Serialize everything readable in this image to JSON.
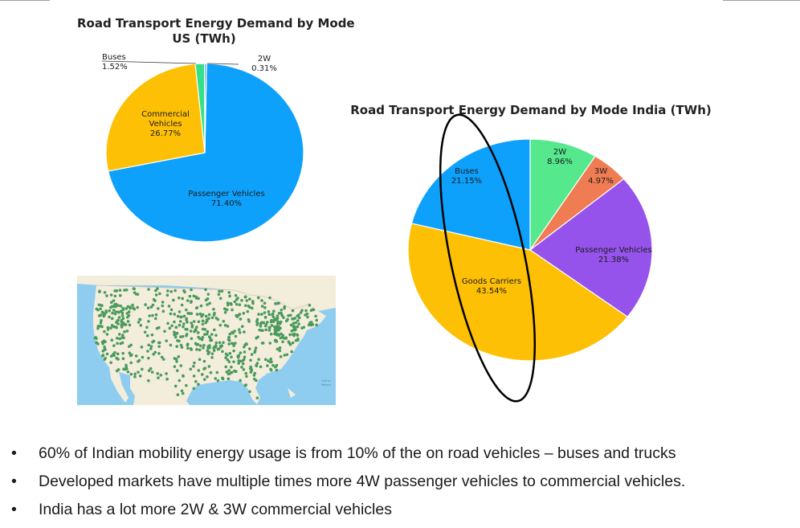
{
  "chart_data": [
    {
      "type": "pie",
      "title": "Road Transport Energy Demand by Mode US (TWh)",
      "title_lines": [
        "Road Transport Energy Demand by Mode",
        "US (TWh)"
      ],
      "slices": [
        {
          "label": "Passenger Vehicles",
          "value": 71.4,
          "pct": "71.40%",
          "color": "#0ea1fc"
        },
        {
          "label": "Commercial Vehicles",
          "value": 26.77,
          "pct": "26.77%",
          "color": "#fec005"
        },
        {
          "label": "Buses",
          "value": 1.52,
          "pct": "1.52%",
          "color": "#35e08a"
        },
        {
          "label": "2W",
          "value": 0.31,
          "pct": "0.31%",
          "color": "#4a8fd8"
        }
      ]
    },
    {
      "type": "pie",
      "title": "Road Transport Energy Demand by Mode India (TWh)",
      "title_lines": [
        "Road Transport Energy Demand by Mode India (TWh)"
      ],
      "slices": [
        {
          "label": "2W",
          "value": 8.96,
          "pct": "8.96%",
          "color": "#55e88d"
        },
        {
          "label": "3W",
          "value": 4.97,
          "pct": "4.97%",
          "color": "#ef7c53"
        },
        {
          "label": "Passenger Vehicles",
          "value": 21.38,
          "pct": "21.38%",
          "color": "#9653ec"
        },
        {
          "label": "Goods Carriers",
          "value": 43.54,
          "pct": "43.54%",
          "color": "#fec005"
        },
        {
          "label": "Buses",
          "value": 21.15,
          "pct": "21.15%",
          "color": "#0ea1fc"
        }
      ]
    }
  ],
  "map": {
    "label_line1": "Gulf of",
    "label_line2": "Mexico",
    "colors": {
      "ocean": "#8fcdf0",
      "land": "#f3eddb",
      "marker": "#4a9a5d",
      "border": "#c9b9a6"
    }
  },
  "bullets": [
    "60% of Indian mobility energy usage is from 10% of the on road vehicles – buses and trucks",
    "Developed markets have multiple times more 4W passenger vehicles to commercial vehicles.",
    "India has a lot more 2W & 3W commercial vehicles"
  ]
}
